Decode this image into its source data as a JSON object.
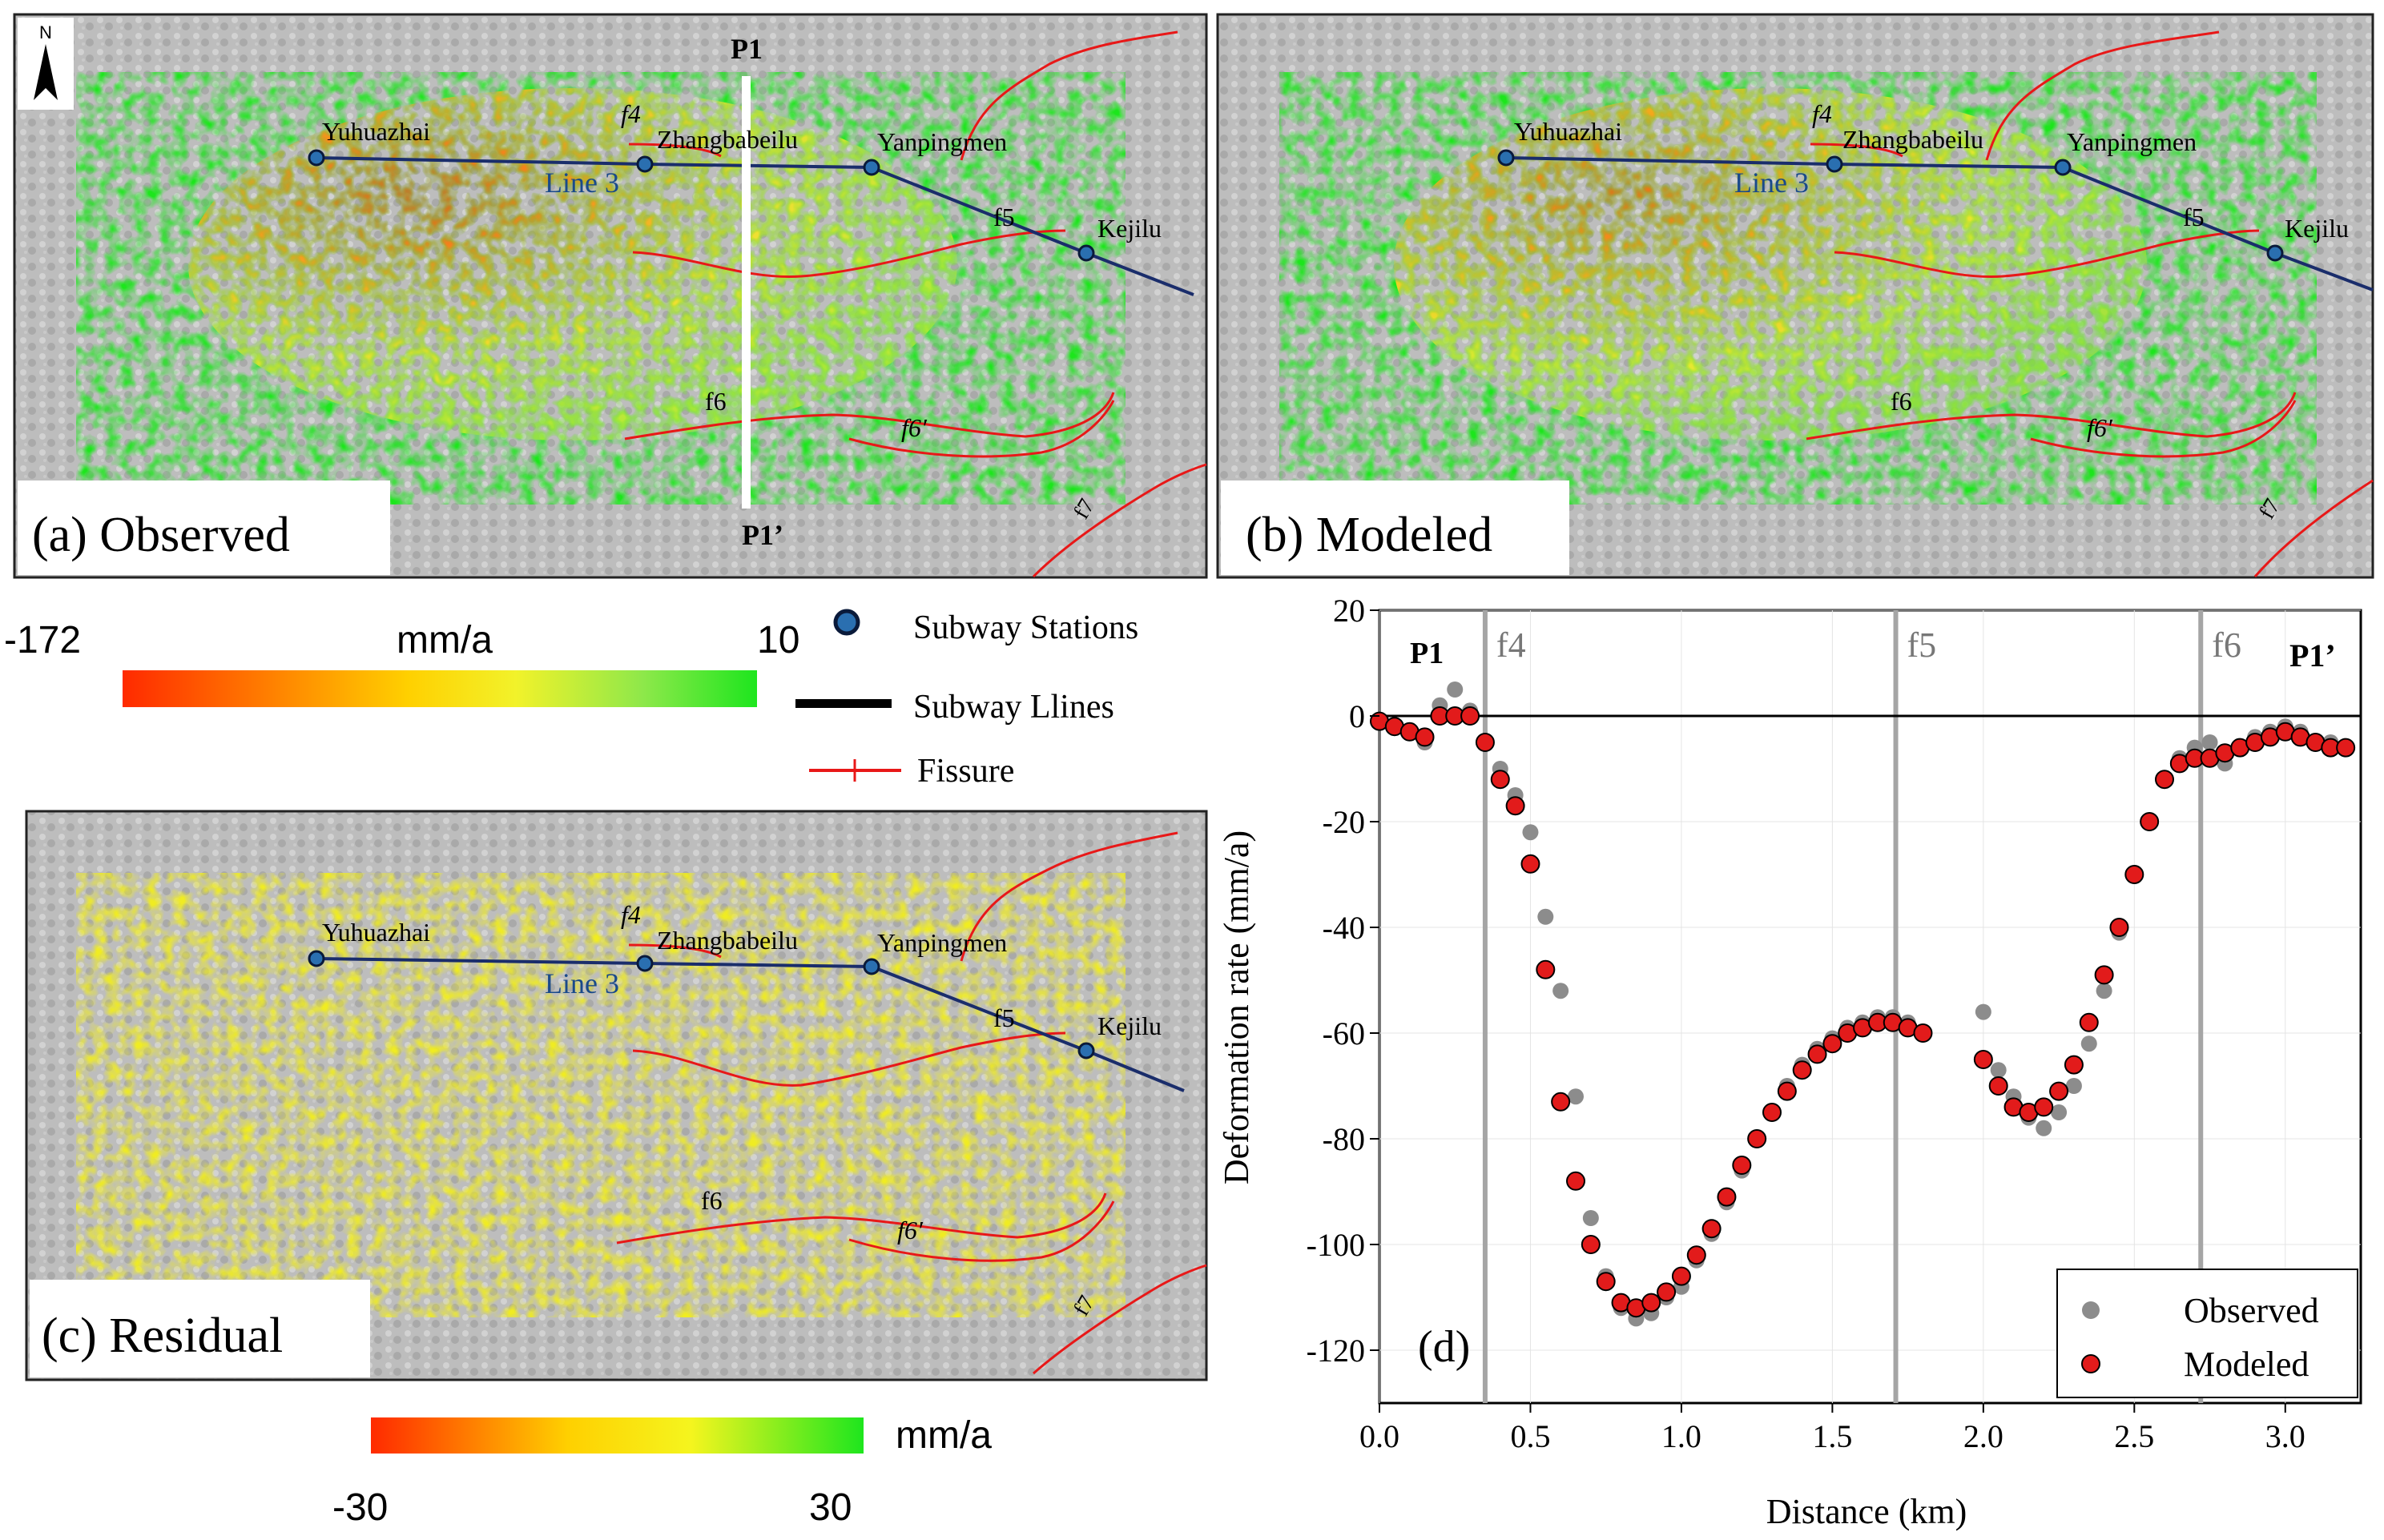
{
  "colors": {
    "deform_low": "#ff2a00",
    "deform_mid": "#ffd000",
    "deform_high": "#1ee61e",
    "fissure": "#e81818",
    "subway": "#1a2d6b",
    "station": "#2a6fb0",
    "hillshade": "#b9b9b9",
    "observed_pt": "#8c8c8c",
    "modeled_pt": "#e21b1b"
  },
  "panels": {
    "a": {
      "label": "(a) Observed",
      "profile_start": "P1",
      "profile_end": "P1’"
    },
    "b": {
      "label": "(b) Modeled"
    },
    "c": {
      "label": "(c) Residual"
    }
  },
  "north_label": "N",
  "map_labels": {
    "stations": [
      "Yuhuazhai",
      "Zhangbabeilu",
      "Yanpingmen",
      "Kejilu"
    ],
    "line": "Line 3",
    "fissures": [
      "f4",
      "f5",
      "f6",
      "f6′",
      "f7"
    ]
  },
  "colorbar_main": {
    "min": "-172",
    "max": "10",
    "unit": "mm/a"
  },
  "colorbar_residual": {
    "min": "-30",
    "max": "30",
    "unit": "mm/a"
  },
  "legend_map": {
    "stations": "Subway Stations",
    "lines": "Subway Llines",
    "fissure": "Fissure"
  },
  "chart_data": {
    "type": "scatter",
    "panel_label": "(d)",
    "xlabel": "Distance (km)",
    "ylabel": "Deformation rate (mm/a)",
    "xlim": [
      0.0,
      3.25
    ],
    "ylim": [
      -130,
      20
    ],
    "xticks": [
      "0.0",
      "0.5",
      "1.0",
      "1.5",
      "2.0",
      "2.5",
      "3.0"
    ],
    "yticks": [
      "20",
      "0",
      "-20",
      "-40",
      "-60",
      "-80",
      "-100",
      "-120"
    ],
    "profile_start": "P1",
    "profile_end": "P1’",
    "fault_lines": [
      {
        "label": "f4",
        "x": 0.35
      },
      {
        "label": "f5",
        "x": 1.71
      },
      {
        "label": "f6",
        "x": 2.72
      }
    ],
    "legend": [
      {
        "name": "Observed"
      },
      {
        "name": "Modeled"
      }
    ],
    "series": [
      {
        "name": "Observed",
        "x": [
          0.0,
          0.05,
          0.1,
          0.15,
          0.2,
          0.25,
          0.3,
          0.35,
          0.4,
          0.45,
          0.5,
          0.55,
          0.6,
          0.65,
          0.7,
          0.75,
          0.8,
          0.85,
          0.9,
          0.95,
          1.0,
          1.05,
          1.1,
          1.15,
          1.2,
          1.25,
          1.3,
          1.35,
          1.4,
          1.45,
          1.5,
          1.55,
          1.6,
          1.65,
          1.7,
          1.75,
          1.8,
          2.0,
          2.05,
          2.1,
          2.15,
          2.2,
          2.25,
          2.3,
          2.35,
          2.4,
          2.45,
          2.5,
          2.55,
          2.6,
          2.65,
          2.7,
          2.75,
          2.8,
          2.85,
          2.9,
          2.95,
          3.0,
          3.05,
          3.1,
          3.15,
          3.2
        ],
        "y": [
          -1,
          -2,
          -3,
          -5,
          2,
          5,
          1,
          -5,
          -10,
          -15,
          -22,
          -38,
          -52,
          -72,
          -95,
          -106,
          -112,
          -114,
          -113,
          -110,
          -108,
          -103,
          -98,
          -92,
          -86,
          -80,
          -75,
          -70,
          -66,
          -63,
          -61,
          -59,
          -58,
          -57,
          -57,
          -58,
          -60,
          -56,
          -67,
          -72,
          -76,
          -78,
          -75,
          -70,
          -62,
          -52,
          -41,
          -30,
          -20,
          -12,
          -8,
          -6,
          -5,
          -9,
          -6,
          -4,
          -3,
          -2,
          -3,
          -5,
          -5,
          -6
        ]
      },
      {
        "name": "Modeled",
        "x": [
          0.0,
          0.05,
          0.1,
          0.15,
          0.2,
          0.25,
          0.3,
          0.35,
          0.4,
          0.45,
          0.5,
          0.55,
          0.6,
          0.65,
          0.7,
          0.75,
          0.8,
          0.85,
          0.9,
          0.95,
          1.0,
          1.05,
          1.1,
          1.15,
          1.2,
          1.25,
          1.3,
          1.35,
          1.4,
          1.45,
          1.5,
          1.55,
          1.6,
          1.65,
          1.7,
          1.75,
          1.8,
          2.0,
          2.05,
          2.1,
          2.15,
          2.2,
          2.25,
          2.3,
          2.35,
          2.4,
          2.45,
          2.5,
          2.55,
          2.6,
          2.65,
          2.7,
          2.75,
          2.8,
          2.85,
          2.9,
          2.95,
          3.0,
          3.05,
          3.1,
          3.15,
          3.2
        ],
        "y": [
          -1,
          -2,
          -3,
          -4,
          0,
          0,
          0,
          -5,
          -12,
          -17,
          -28,
          -48,
          -73,
          -88,
          -100,
          -107,
          -111,
          -112,
          -111,
          -109,
          -106,
          -102,
          -97,
          -91,
          -85,
          -80,
          -75,
          -71,
          -67,
          -64,
          -62,
          -60,
          -59,
          -58,
          -58,
          -59,
          -60,
          -65,
          -70,
          -74,
          -75,
          -74,
          -71,
          -66,
          -58,
          -49,
          -40,
          -30,
          -20,
          -12,
          -9,
          -8,
          -8,
          -7,
          -6,
          -5,
          -4,
          -3,
          -4,
          -5,
          -6,
          -6
        ]
      }
    ]
  }
}
